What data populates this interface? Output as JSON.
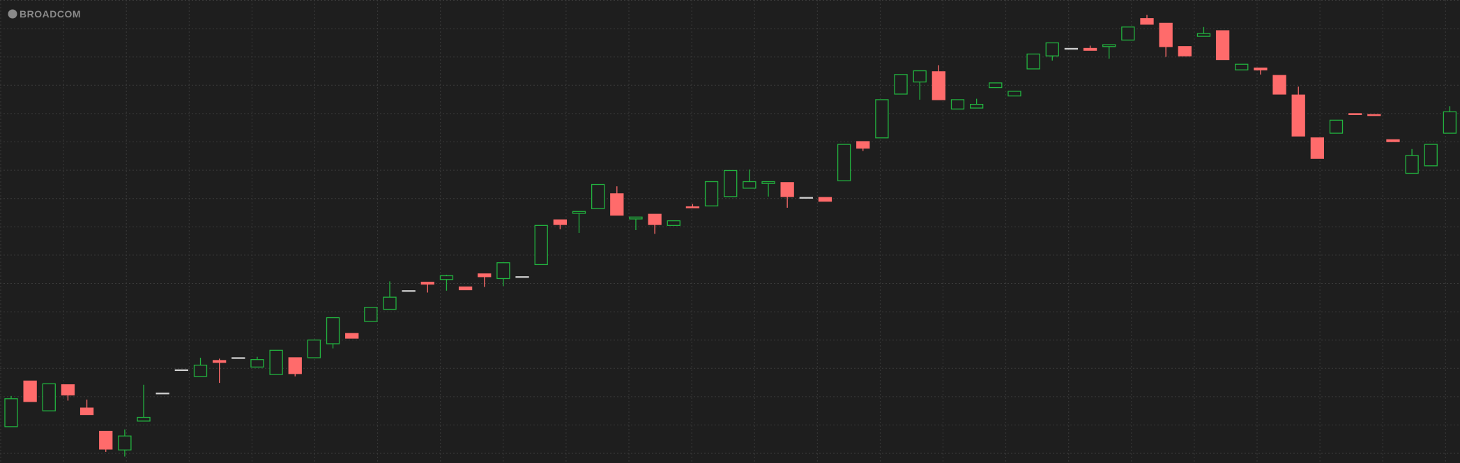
{
  "chart_data": {
    "type": "candlestick",
    "watermark": "BROADCOM",
    "ylim": [
      0,
      497
    ],
    "up_color": "#22b33f",
    "down_color": "#ff6b6b",
    "doji_color": "#d0d0d0",
    "grid": true,
    "open": [
      39,
      88,
      56,
      84,
      59,
      34,
      14,
      45,
      75,
      100,
      93,
      110,
      113,
      103,
      95,
      113,
      113,
      128,
      139,
      152,
      165,
      185,
      194,
      197,
      189,
      203,
      198,
      200,
      213,
      261,
      268,
      273,
      289,
      262,
      267,
      255,
      275,
      276,
      286,
      295,
      300,
      301,
      285,
      285,
      303,
      345,
      349,
      396,
      409,
      420,
      380,
      381,
      403,
      394,
      423,
      437,
      445,
      445,
      447,
      454,
      477,
      472,
      447,
      458,
      464,
      422,
      424,
      416,
      395,
      349,
      354,
      375,
      374,
      347,
      311,
      319,
      354
    ],
    "high": [
      72,
      88,
      85,
      84,
      68,
      34,
      36,
      84,
      75,
      100,
      113,
      112,
      113,
      114,
      121,
      113,
      132,
      156,
      139,
      167,
      195,
      185,
      194,
      202,
      189,
      203,
      215,
      200,
      255,
      261,
      270,
      299,
      297,
      264,
      267,
      260,
      278,
      302,
      314,
      315,
      302,
      301,
      285,
      285,
      342,
      345,
      390,
      417,
      421,
      427,
      390,
      391,
      408,
      399,
      439,
      451,
      445,
      448,
      449,
      468,
      481,
      472,
      447,
      468,
      464,
      428,
      424,
      416,
      404,
      349,
      368,
      375,
      374,
      347,
      337,
      342,
      383
    ],
    "low": [
      39,
      66,
      56,
      67,
      52,
      12,
      7,
      45,
      75,
      100,
      93,
      86,
      113,
      103,
      95,
      93,
      113,
      123,
      134,
      152,
      165,
      185,
      183,
      185,
      186,
      189,
      190,
      200,
      213,
      251,
      247,
      273,
      266,
      250,
      246,
      255,
      274,
      276,
      286,
      295,
      286,
      274,
      285,
      281,
      303,
      335,
      349,
      396,
      390,
      390,
      380,
      381,
      403,
      394,
      423,
      432,
      445,
      443,
      434,
      454,
      471,
      436,
      437,
      458,
      433,
      422,
      417,
      396,
      351,
      327,
      354,
      374,
      373,
      345,
      311,
      319,
      354
    ],
    "close": [
      69,
      66,
      85,
      73,
      52,
      15,
      29,
      49,
      75,
      100,
      105,
      108,
      113,
      111,
      121,
      96,
      132,
      156,
      134,
      167,
      178,
      185,
      192,
      201,
      186,
      200,
      215,
      200,
      255,
      256,
      270,
      299,
      266,
      264,
      256,
      260,
      274,
      302,
      314,
      302,
      302,
      286,
      285,
      281,
      342,
      338,
      390,
      417,
      421,
      390,
      390,
      385,
      408,
      399,
      439,
      451,
      445,
      443,
      449,
      468,
      471,
      447,
      437,
      461,
      433,
      428,
      422,
      396,
      351,
      327,
      368,
      374,
      373,
      345,
      330,
      342,
      377
    ]
  }
}
